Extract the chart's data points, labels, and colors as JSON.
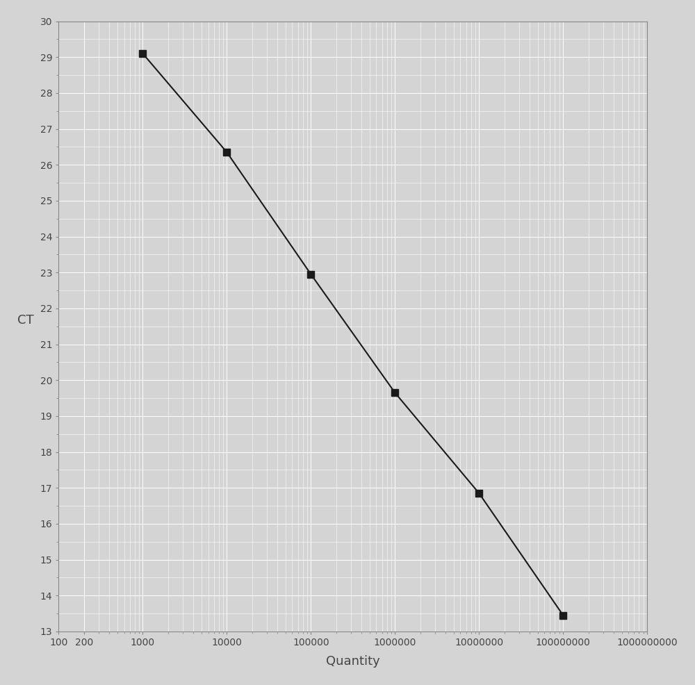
{
  "x_values": [
    1000,
    10000,
    100000,
    1000000,
    10000000,
    100000000
  ],
  "y_values": [
    29.1,
    26.35,
    22.95,
    19.65,
    16.85,
    13.45
  ],
  "marker": "s",
  "marker_color": "#1a1a1a",
  "marker_size": 7,
  "line_color": "#1a1a1a",
  "line_width": 1.5,
  "xlabel": "Quantity",
  "ylabel": "CT",
  "xlim": [
    100,
    1000000000
  ],
  "ylim": [
    13,
    30
  ],
  "yticks": [
    13,
    14,
    15,
    16,
    17,
    18,
    19,
    20,
    21,
    22,
    23,
    24,
    25,
    26,
    27,
    28,
    29,
    30
  ],
  "background_color": "#d4d4d4",
  "grid_color": "#ffffff",
  "xlabel_fontsize": 13,
  "ylabel_fontsize": 13,
  "tick_fontsize": 10,
  "tick_color": "#444444",
  "spine_color": "#888888"
}
